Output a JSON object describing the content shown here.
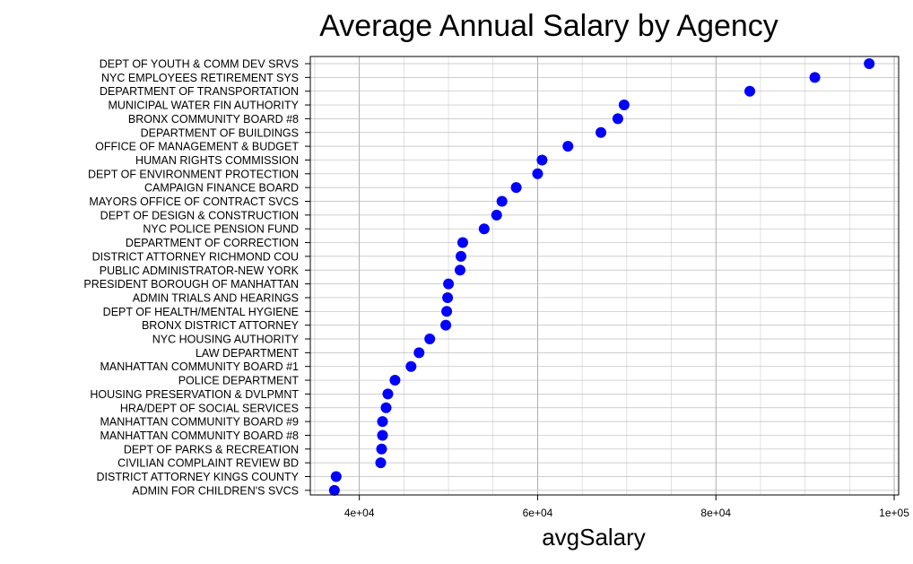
{
  "chart_data": {
    "type": "scatter",
    "title": "Average Annual Salary by Agency",
    "xlabel": "avgSalary",
    "ylabel": "",
    "xlim": [
      34500,
      100500
    ],
    "x_ticks": [
      40000,
      60000,
      80000,
      100000
    ],
    "x_tick_labels": [
      "4e+04",
      "6e+04",
      "8e+04",
      "1e+05"
    ],
    "grid": true,
    "point_color": "#0000ff",
    "categories": [
      "DEPT OF YOUTH & COMM DEV SRVS",
      "NYC EMPLOYEES RETIREMENT SYS",
      "DEPARTMENT OF TRANSPORTATION",
      "MUNICIPAL WATER FIN AUTHORITY",
      "BRONX COMMUNITY BOARD #8",
      "DEPARTMENT OF BUILDINGS",
      "OFFICE OF MANAGEMENT & BUDGET",
      "HUMAN RIGHTS COMMISSION",
      "DEPT OF ENVIRONMENT PROTECTION",
      "CAMPAIGN FINANCE BOARD",
      "MAYORS OFFICE OF CONTRACT SVCS",
      "DEPT OF DESIGN & CONSTRUCTION",
      "NYC POLICE PENSION FUND",
      "DEPARTMENT OF CORRECTION",
      "DISTRICT ATTORNEY RICHMOND COU",
      "PUBLIC ADMINISTRATOR-NEW YORK",
      "PRESIDENT BOROUGH OF MANHATTAN",
      "ADMIN TRIALS AND HEARINGS",
      "DEPT OF HEALTH/MENTAL HYGIENE",
      "BRONX DISTRICT ATTORNEY",
      "NYC HOUSING AUTHORITY",
      "LAW DEPARTMENT",
      "MANHATTAN COMMUNITY BOARD #1",
      "POLICE DEPARTMENT",
      "HOUSING PRESERVATION & DVLPMNT",
      "HRA/DEPT OF SOCIAL SERVICES",
      "MANHATTAN COMMUNITY BOARD #9",
      "MANHATTAN COMMUNITY BOARD #8",
      "DEPT OF PARKS & RECREATION",
      "CIVILIAN COMPLAINT REVIEW BD",
      "DISTRICT ATTORNEY KINGS COUNTY",
      "ADMIN FOR CHILDREN'S SVCS"
    ],
    "values": [
      97200,
      91100,
      83800,
      69700,
      69000,
      67100,
      63400,
      60500,
      60000,
      57600,
      56000,
      55400,
      54000,
      51600,
      51400,
      51300,
      50000,
      49900,
      49800,
      49700,
      47900,
      46700,
      45800,
      44000,
      43200,
      43000,
      42600,
      42600,
      42500,
      42400,
      37400,
      37200
    ]
  }
}
